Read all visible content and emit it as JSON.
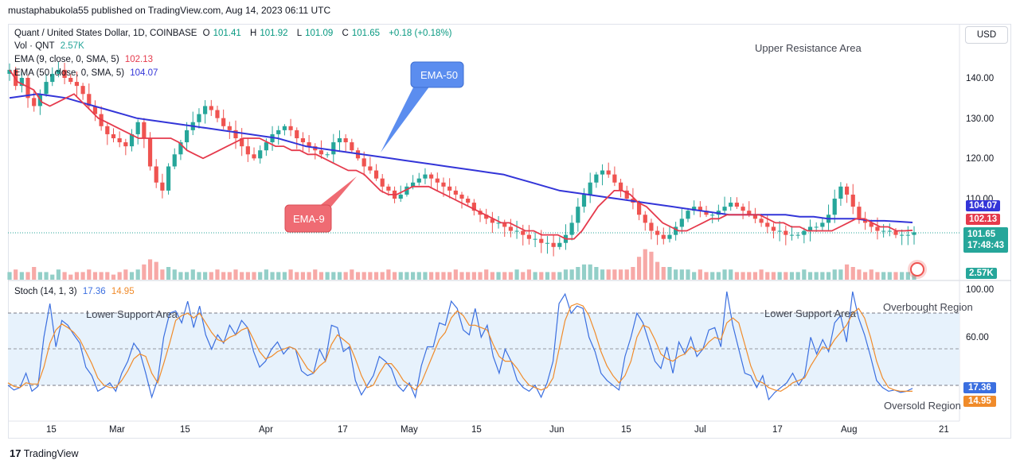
{
  "header": {
    "credit": "mustaphabukola55 published on TradingView.com, Aug 14, 2023 06:11 UTC"
  },
  "legend": {
    "symbol": "Quant / United States Dollar, 1D, COINBASE",
    "open_label": "O",
    "open": "101.41",
    "high_label": "H",
    "high": "101.92",
    "low_label": "L",
    "low": "101.09",
    "close_label": "C",
    "close": "101.65",
    "change": "+0.18 (+0.18%)",
    "vol_label": "Vol · QNT",
    "vol_value": "2.57K",
    "ema9_label": "EMA (9, close, 0, SMA, 5)",
    "ema9_value": "102.13",
    "ema50_label": "EMA (50, close, 0, SMA, 5)",
    "ema50_value": "104.07",
    "stoch_label": "Stoch (14, 1, 3)",
    "stoch_k": "17.36",
    "stoch_d": "14.95"
  },
  "currency_button": "USD",
  "price_tags": {
    "ema50": "104.07",
    "ema9": "102.13",
    "last_price": "101.65",
    "countdown": "17:48:43",
    "volume": "2.57K",
    "stoch_k": "17.36",
    "stoch_d": "14.95"
  },
  "colors": {
    "up": "#26a69a",
    "down": "#ef5350",
    "ema9": "#e53a4c",
    "ema50": "#3335d8",
    "stoch_k": "#3b6fe0",
    "stoch_d": "#f08b2a",
    "stoch_band": "#e7f2fc",
    "vol_up": "#93cfc8",
    "vol_down": "#f7a9a7"
  },
  "annotations": {
    "upper_resistance": "Upper Resistance Area",
    "ema50_callout": "EMA-50",
    "ema9_callout": "EMA-9",
    "lower_support_1": "Lower Support Area",
    "lower_support_2": "Lower Support Area",
    "overbought": "Overbought Region",
    "oversold": "Oversold Region"
  },
  "footer": {
    "brand": "TradingView",
    "logo_icon": "tradingview-logo-icon"
  },
  "chart_data": [
    {
      "type": "candlestick",
      "title": "Quant / United States Dollar, 1D, COINBASE",
      "x_ticks": [
        "15",
        "Mar",
        "15",
        "Apr",
        "17",
        "May",
        "15",
        "Jun",
        "15",
        "Jul",
        "17",
        "Aug",
        "21"
      ],
      "y_ticks": [
        "140.00",
        "130.00",
        "120.00",
        "110.00"
      ],
      "ylim": [
        93,
        150
      ],
      "grid": false,
      "series": [
        {
          "name": "QNT/USD close (approx.)",
          "values": [
            142,
            138,
            140,
            135,
            133,
            136,
            139,
            141,
            142,
            140,
            139,
            138,
            136,
            133,
            131,
            128,
            126,
            125,
            124,
            123,
            126,
            129,
            125,
            118,
            114,
            112,
            118,
            121,
            124,
            127,
            129,
            131,
            133,
            132,
            130,
            128,
            127,
            125,
            123,
            121,
            120,
            122,
            124,
            126,
            127,
            128,
            127,
            125,
            124,
            123,
            122,
            121,
            121,
            124,
            125,
            124,
            122,
            120,
            118,
            117,
            115,
            113,
            112,
            110,
            111,
            113,
            114,
            115,
            116,
            115,
            114,
            113,
            112,
            111,
            110,
            109,
            107,
            106,
            105,
            104,
            104,
            103,
            102,
            102,
            101,
            100,
            100,
            99,
            99,
            98,
            99,
            101,
            104,
            108,
            111,
            114,
            116,
            117,
            116,
            114,
            112,
            110,
            109,
            106,
            104,
            102,
            101,
            100,
            101,
            103,
            105,
            107,
            108,
            107,
            106,
            106,
            107,
            108,
            109,
            108,
            107,
            106,
            105,
            104,
            103,
            102,
            102,
            101,
            101,
            101,
            102,
            103,
            103,
            104,
            106,
            110,
            113,
            111,
            108,
            105,
            104,
            103,
            102,
            102,
            102,
            101,
            101,
            101,
            101.65
          ]
        },
        {
          "name": "EMA (9, close, 0, SMA, 5)",
          "values": [
            142,
            139,
            138,
            137,
            134,
            133,
            134,
            135,
            136,
            134,
            132,
            130,
            129,
            128,
            127,
            126,
            125,
            125,
            125,
            125,
            125,
            124,
            122,
            121,
            120,
            121,
            122,
            123,
            124,
            125,
            125,
            125,
            124,
            123,
            123,
            122,
            122,
            121,
            121,
            120,
            119,
            118,
            117,
            117,
            116,
            114,
            112,
            111,
            111,
            112,
            113,
            113,
            113,
            112,
            111,
            110,
            109,
            108,
            107,
            106,
            105,
            104,
            104,
            103,
            102,
            102,
            101,
            101,
            101,
            100,
            100,
            102,
            105,
            108,
            110,
            112,
            112,
            111,
            109,
            108,
            106,
            104,
            103,
            102,
            102,
            103,
            104,
            105,
            105,
            106,
            106,
            106,
            106,
            106,
            105,
            104,
            104,
            103,
            103,
            102,
            102,
            102,
            102,
            103,
            104,
            105,
            105,
            104,
            103,
            103,
            102,
            102,
            102.13
          ]
        },
        {
          "name": "EMA (50, close, 0, SMA, 5)",
          "values": [
            135,
            135.5,
            136,
            135.5,
            135,
            134,
            133,
            132,
            131,
            130,
            129.5,
            129,
            128.5,
            128,
            127.5,
            127,
            126.5,
            126,
            125.5,
            125,
            124,
            123,
            122.5,
            122,
            121.5,
            121,
            120.5,
            120,
            119.5,
            119,
            118.5,
            118,
            117.5,
            117,
            116.5,
            116,
            115,
            114,
            113,
            112,
            111.5,
            111,
            110.5,
            110,
            109.5,
            109,
            108.5,
            108,
            107.5,
            107,
            106.5,
            106,
            106,
            106,
            106,
            106,
            105.5,
            105.5,
            105,
            105,
            105,
            104.5,
            104.5,
            104.3,
            104.07
          ]
        }
      ]
    },
    {
      "type": "bar",
      "title": "Vol · QNT",
      "series": [
        {
          "name": "Vol · QNT",
          "values": [
            3,
            4,
            3,
            3,
            5,
            3,
            3,
            2,
            4,
            3,
            2,
            3,
            3,
            4,
            3,
            3,
            3,
            2,
            3,
            4,
            3,
            4,
            6,
            8,
            7,
            4,
            5,
            4,
            3,
            3,
            4,
            3,
            3,
            3,
            4,
            3,
            3,
            4,
            3,
            3,
            3,
            3,
            4,
            3,
            3,
            3,
            4,
            3,
            3,
            3,
            4,
            3,
            3,
            3,
            3,
            3,
            4,
            3,
            3,
            3,
            3,
            3,
            4,
            3,
            3,
            3,
            3,
            3,
            3,
            3,
            3,
            3,
            3,
            4,
            3,
            3,
            3,
            3,
            4,
            3,
            3,
            3,
            3,
            4,
            3,
            4,
            3,
            3,
            3,
            3,
            3,
            4,
            4,
            5,
            6,
            6,
            5,
            4,
            4,
            4,
            4,
            4,
            5,
            9,
            12,
            11,
            7,
            5,
            5,
            4,
            4,
            4,
            3,
            4,
            3,
            3,
            3,
            4,
            4,
            3,
            3,
            3,
            3,
            4,
            3,
            3,
            3,
            3,
            3,
            3,
            4,
            3,
            3,
            3,
            3,
            4,
            4,
            6,
            5,
            4,
            3,
            4,
            3,
            3,
            3,
            3,
            3,
            3,
            2.57
          ]
        }
      ]
    },
    {
      "type": "line",
      "title": "Stoch (14, 1, 3)",
      "y_ticks": [
        "100.00",
        "60.00"
      ],
      "ylim": [
        0,
        100
      ],
      "series": [
        {
          "name": "%K",
          "values": [
            20,
            16,
            18,
            30,
            15,
            19,
            60,
            88,
            52,
            74,
            70,
            62,
            55,
            35,
            28,
            15,
            18,
            22,
            15,
            30,
            40,
            55,
            48,
            30,
            10,
            25,
            60,
            80,
            82,
            72,
            90,
            68,
            86,
            62,
            50,
            62,
            55,
            70,
            62,
            74,
            68,
            48,
            35,
            40,
            50,
            56,
            46,
            52,
            50,
            32,
            28,
            30,
            50,
            40,
            70,
            68,
            48,
            52,
            24,
            12,
            20,
            28,
            44,
            40,
            34,
            20,
            15,
            22,
            10,
            36,
            52,
            52,
            72,
            70,
            90,
            84,
            66,
            62,
            84,
            60,
            70,
            44,
            30,
            50,
            40,
            24,
            18,
            15,
            20,
            10,
            22,
            40,
            88,
            96,
            80,
            86,
            84,
            60,
            48,
            30,
            24,
            20,
            16,
            44,
            60,
            80,
            72,
            56,
            40,
            34,
            52,
            30,
            56,
            46,
            60,
            44,
            50,
            66,
            68,
            52,
            98,
            70,
            50,
            30,
            28,
            18,
            28,
            8,
            14,
            18,
            22,
            30,
            20,
            28,
            60,
            46,
            58,
            48,
            72,
            78,
            56,
            98,
            76,
            62,
            44,
            24,
            18,
            15,
            16,
            14,
            15,
            17.36
          ]
        },
        {
          "name": "%D",
          "values": [
            22,
            19,
            18,
            22,
            21,
            21,
            35,
            55,
            66,
            71,
            68,
            64,
            58,
            48,
            38,
            26,
            20,
            18,
            18,
            24,
            32,
            42,
            46,
            44,
            30,
            22,
            38,
            55,
            74,
            78,
            80,
            76,
            80,
            72,
            64,
            58,
            56,
            60,
            62,
            66,
            68,
            58,
            48,
            42,
            44,
            48,
            50,
            52,
            50,
            42,
            34,
            30,
            36,
            40,
            54,
            62,
            58,
            54,
            42,
            28,
            18,
            20,
            30,
            38,
            38,
            32,
            24,
            20,
            16,
            22,
            34,
            46,
            58,
            64,
            76,
            82,
            78,
            70,
            70,
            68,
            66,
            54,
            44,
            40,
            40,
            34,
            26,
            20,
            18,
            16,
            18,
            26,
            50,
            74,
            86,
            88,
            86,
            78,
            64,
            48,
            36,
            28,
            22,
            28,
            40,
            60,
            70,
            68,
            58,
            46,
            42,
            40,
            44,
            46,
            52,
            48,
            50,
            56,
            60,
            58,
            72,
            76,
            72,
            54,
            36,
            24,
            22,
            18,
            16,
            15,
            18,
            22,
            24,
            26,
            36,
            44,
            52,
            50,
            58,
            64,
            70,
            80,
            84,
            76,
            60,
            40,
            26,
            18,
            16,
            15,
            15,
            14.95
          ]
        }
      ]
    }
  ]
}
